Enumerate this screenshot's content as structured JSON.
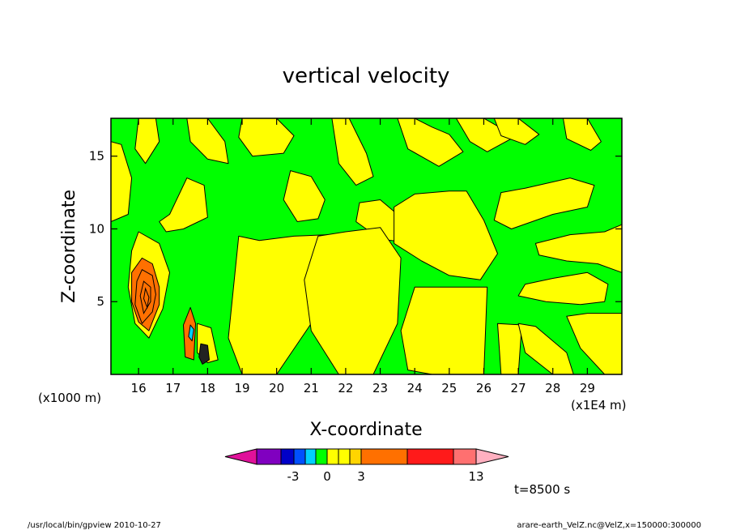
{
  "chart_data": {
    "type": "heatmap",
    "title": "vertical velocity",
    "xlabel": "X-coordinate",
    "ylabel": "Z-coordinate",
    "x_unit_note": "(x1E4 m)",
    "y_unit_note": "(x1000 m)",
    "xlim": [
      15.2,
      30.0
    ],
    "ylim": [
      0.0,
      17.6
    ],
    "xticks": [
      16,
      17,
      18,
      19,
      20,
      21,
      22,
      23,
      24,
      25,
      26,
      27,
      28,
      29
    ],
    "xtick_labels": [
      "16",
      "17",
      "18",
      "19",
      "20",
      "21",
      "22",
      "23",
      "24",
      "25",
      "26",
      "27",
      "28",
      "29"
    ],
    "yticks": [
      5,
      10,
      15
    ],
    "ytick_labels": [
      "5",
      "10",
      "15"
    ],
    "colorbar": {
      "colors": [
        "#e0119a",
        "#8000c0",
        "#0000c8",
        "#0050ff",
        "#00d0ff",
        "#00ff00",
        "#ffff00",
        "#ffff00",
        "#ffd400",
        "#ff7000",
        "#ff1a1a",
        "#ff7070",
        "#ffb0c0"
      ],
      "labels": [
        {
          "value": -3,
          "text": "-3"
        },
        {
          "value": 0,
          "text": "0"
        },
        {
          "value": 3,
          "text": "3"
        },
        {
          "value": 13,
          "text": "13"
        }
      ]
    },
    "regions": [
      {
        "level": "yellow",
        "color": "#ffff00",
        "x": [
          16.0,
          16.6,
          16.9,
          16.7,
          16.3,
          15.9,
          15.7,
          15.8
        ],
        "y": [
          9.8,
          9.0,
          7.0,
          4.5,
          2.5,
          3.5,
          6.0,
          8.5
        ]
      },
      {
        "level": "orange",
        "color": "#ff7000",
        "x": [
          16.1,
          16.4,
          16.6,
          16.6,
          16.3,
          16.0,
          15.8,
          15.8
        ],
        "y": [
          8.0,
          7.6,
          6.0,
          4.8,
          3.0,
          3.6,
          5.0,
          7.0
        ]
      },
      {
        "level": "orange",
        "color": "#ff7000",
        "x": [
          17.5,
          17.65,
          17.6,
          17.35,
          17.3
        ],
        "y": [
          4.6,
          3.5,
          1.0,
          1.2,
          3.4
        ]
      },
      {
        "level": "yellow",
        "color": "#ffff00",
        "x": [
          17.7,
          18.1,
          18.3,
          18.0,
          17.7
        ],
        "y": [
          3.5,
          3.2,
          1.0,
          0.8,
          1.5
        ]
      },
      {
        "level": "black",
        "color": "#222222",
        "x": [
          17.8,
          18.0,
          18.05,
          17.85,
          17.75
        ],
        "y": [
          2.1,
          2.0,
          1.0,
          0.7,
          1.2
        ]
      },
      {
        "level": "cyan",
        "color": "#00d0ff",
        "x": [
          17.5,
          17.6,
          17.55,
          17.45
        ],
        "y": [
          3.4,
          3.1,
          2.3,
          2.6
        ]
      },
      {
        "level": "yellow",
        "color": "#ffff00",
        "x": [
          16.9,
          17.4,
          17.9,
          18.0,
          17.3,
          16.8,
          16.6
        ],
        "y": [
          11.0,
          13.5,
          13.0,
          10.8,
          10.0,
          9.8,
          10.5
        ]
      },
      {
        "level": "yellow",
        "color": "#ffff00",
        "x": [
          15.2,
          15.5,
          15.8,
          15.7,
          15.2
        ],
        "y": [
          16.0,
          15.8,
          13.5,
          11.0,
          10.5
        ]
      },
      {
        "level": "yellow",
        "color": "#ffff00",
        "x": [
          16.0,
          16.5,
          16.6,
          16.2,
          15.9
        ],
        "y": [
          17.6,
          17.6,
          16.0,
          14.5,
          15.5
        ]
      },
      {
        "level": "yellow",
        "color": "#ffff00",
        "x": [
          17.4,
          18.0,
          18.5,
          18.6,
          18.0,
          17.5
        ],
        "y": [
          17.6,
          17.6,
          16.0,
          14.5,
          14.8,
          16.0
        ]
      },
      {
        "level": "yellow",
        "color": "#ffff00",
        "x": [
          19.0,
          20.0,
          20.5,
          20.2,
          19.3,
          18.9
        ],
        "y": [
          17.6,
          17.6,
          16.4,
          15.2,
          15.0,
          16.3
        ]
      },
      {
        "level": "yellow",
        "color": "#ffff00",
        "x": [
          18.9,
          19.5,
          20.5,
          21.5,
          21.6,
          21.0,
          20.0,
          19.0,
          18.6
        ],
        "y": [
          9.5,
          9.2,
          9.5,
          9.6,
          6.0,
          3.5,
          0.0,
          0.0,
          2.5
        ]
      },
      {
        "level": "yellow",
        "color": "#ffff00",
        "x": [
          20.4,
          21.0,
          21.4,
          21.2,
          20.6,
          20.2
        ],
        "y": [
          14.0,
          13.6,
          12.0,
          10.7,
          10.5,
          12.0
        ]
      },
      {
        "level": "yellow",
        "color": "#ffff00",
        "x": [
          21.6,
          22.1,
          22.6,
          22.8,
          22.3,
          21.8
        ],
        "y": [
          17.6,
          17.6,
          15.2,
          13.6,
          13.0,
          14.5
        ]
      },
      {
        "level": "yellow",
        "color": "#ffff00",
        "x": [
          22.4,
          23.0,
          23.5,
          24.5,
          24.0,
          23.0,
          22.3
        ],
        "y": [
          11.8,
          12.0,
          11.0,
          10.0,
          9.0,
          9.3,
          10.5
        ]
      },
      {
        "level": "yellow",
        "color": "#ffff00",
        "x": [
          21.2,
          22.0,
          23.0,
          23.6,
          23.5,
          22.8,
          21.8,
          21.0,
          20.8
        ],
        "y": [
          9.5,
          9.8,
          10.1,
          8.0,
          3.5,
          0.0,
          0.0,
          3.0,
          6.5
        ]
      },
      {
        "level": "yellow",
        "color": "#ffff00",
        "x": [
          23.4,
          24.0,
          25.0,
          25.5,
          26.0,
          26.4,
          25.9,
          25.0,
          24.2,
          23.4
        ],
        "y": [
          11.5,
          12.4,
          12.6,
          12.6,
          10.6,
          8.3,
          6.5,
          6.8,
          7.8,
          9.0
        ]
      },
      {
        "level": "yellow",
        "color": "#ffff00",
        "x": [
          24.0,
          26.1,
          26.0,
          25.5,
          24.5,
          23.8,
          23.6
        ],
        "y": [
          6.0,
          6.0,
          0.0,
          0.0,
          0.0,
          0.3,
          3.0
        ]
      },
      {
        "level": "yellow",
        "color": "#ffff00",
        "x": [
          26.4,
          27.1,
          27.0,
          26.5
        ],
        "y": [
          3.5,
          3.4,
          0.0,
          0.0
        ]
      },
      {
        "level": "yellow",
        "color": "#ffff00",
        "x": [
          23.5,
          24.0,
          24.5,
          25.0,
          25.4,
          24.7,
          23.8
        ],
        "y": [
          17.6,
          17.6,
          17.0,
          16.5,
          15.3,
          14.3,
          15.5
        ]
      },
      {
        "level": "yellow",
        "color": "#ffff00",
        "x": [
          25.2,
          26.0,
          26.6,
          26.8,
          26.1,
          25.6
        ],
        "y": [
          17.6,
          17.6,
          16.8,
          16.2,
          15.3,
          16.0
        ]
      },
      {
        "level": "yellow",
        "color": "#ffff00",
        "x": [
          26.5,
          27.2,
          28.5,
          29.2,
          29.0,
          28.0,
          26.8,
          26.3
        ],
        "y": [
          12.5,
          12.8,
          13.5,
          13.0,
          11.5,
          11.0,
          10.0,
          10.6
        ]
      },
      {
        "level": "yellow",
        "color": "#ffff00",
        "x": [
          27.5,
          28.5,
          29.5,
          30.0,
          30.0,
          29.3,
          28.4,
          27.6
        ],
        "y": [
          9.0,
          9.6,
          9.8,
          10.3,
          7.0,
          7.6,
          7.8,
          8.2
        ]
      },
      {
        "level": "yellow",
        "color": "#ffff00",
        "x": [
          27.2,
          28.0,
          29.0,
          29.6,
          29.5,
          28.8,
          27.8,
          27.0
        ],
        "y": [
          6.2,
          6.6,
          7.0,
          6.2,
          5.0,
          4.8,
          5.0,
          5.4
        ]
      },
      {
        "level": "yellow",
        "color": "#ffff00",
        "x": [
          28.4,
          29.0,
          30.0,
          30.0,
          29.5,
          28.8
        ],
        "y": [
          4.0,
          4.2,
          4.2,
          0.0,
          0.0,
          1.8
        ]
      },
      {
        "level": "yellow",
        "color": "#ffff00",
        "x": [
          27.0,
          27.5,
          28.4,
          28.6,
          28.0,
          27.2
        ],
        "y": [
          3.5,
          3.3,
          1.5,
          0.0,
          0.0,
          1.5
        ]
      },
      {
        "level": "yellow",
        "color": "#ffff00",
        "x": [
          28.3,
          29.0,
          29.4,
          29.1,
          28.4
        ],
        "y": [
          17.6,
          17.6,
          16.0,
          15.4,
          16.2
        ]
      },
      {
        "level": "yellow",
        "color": "#ffff00",
        "x": [
          26.3,
          27.0,
          27.6,
          27.2,
          26.5
        ],
        "y": [
          17.6,
          17.6,
          16.5,
          15.8,
          16.4
        ]
      }
    ],
    "contour_lines": [
      {
        "color": "#000000",
        "x": [
          16.1,
          16.4,
          16.5,
          16.4,
          16.1,
          15.9,
          15.95
        ],
        "y": [
          7.2,
          6.8,
          5.5,
          4.3,
          3.5,
          4.8,
          6.4
        ]
      },
      {
        "color": "#000000",
        "x": [
          16.15,
          16.35,
          16.35,
          16.15,
          16.05
        ],
        "y": [
          6.4,
          6.0,
          5.0,
          4.2,
          5.4
        ]
      },
      {
        "color": "#000000",
        "x": [
          16.2,
          16.3,
          16.25,
          16.15
        ],
        "y": [
          5.9,
          5.3,
          4.6,
          5.2
        ]
      }
    ]
  },
  "footer": {
    "timestamp_label": "t=8500 s",
    "program_path": "/usr/local/bin/gpview   2010-10-27",
    "data_source": "arare-earth_VelZ.nc@VelZ,x=150000:300000"
  }
}
